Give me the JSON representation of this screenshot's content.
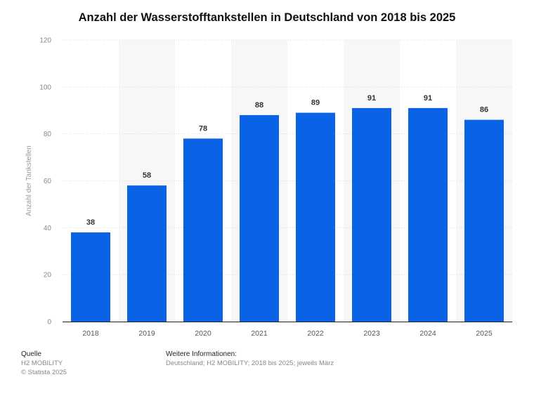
{
  "chart_data": {
    "type": "bar",
    "title": "Anzahl der Wasserstofftankstellen in Deutschland von 2018 bis 2025",
    "ylabel": "Anzahl der Tankstellen",
    "xlabel": "",
    "categories": [
      "2018",
      "2019",
      "2020",
      "2021",
      "2022",
      "2023",
      "2024",
      "2025"
    ],
    "values": [
      38,
      58,
      78,
      88,
      89,
      91,
      91,
      86
    ],
    "ylim": [
      0,
      120
    ],
    "yticks": [
      0,
      20,
      40,
      60,
      80,
      100,
      120
    ],
    "grid": "horizontal dashed",
    "bar_color": "#0a63e6",
    "band_color": "#f7f7f7"
  },
  "footer": {
    "source_heading": "Quelle",
    "source_line1": "H2 MOBILITY",
    "source_line2": "© Statista 2025",
    "info_heading": "Weitere Informationen:",
    "info_text": "Deutschland; H2 MOBILITY; 2018 bis 2025; jeweils März"
  }
}
